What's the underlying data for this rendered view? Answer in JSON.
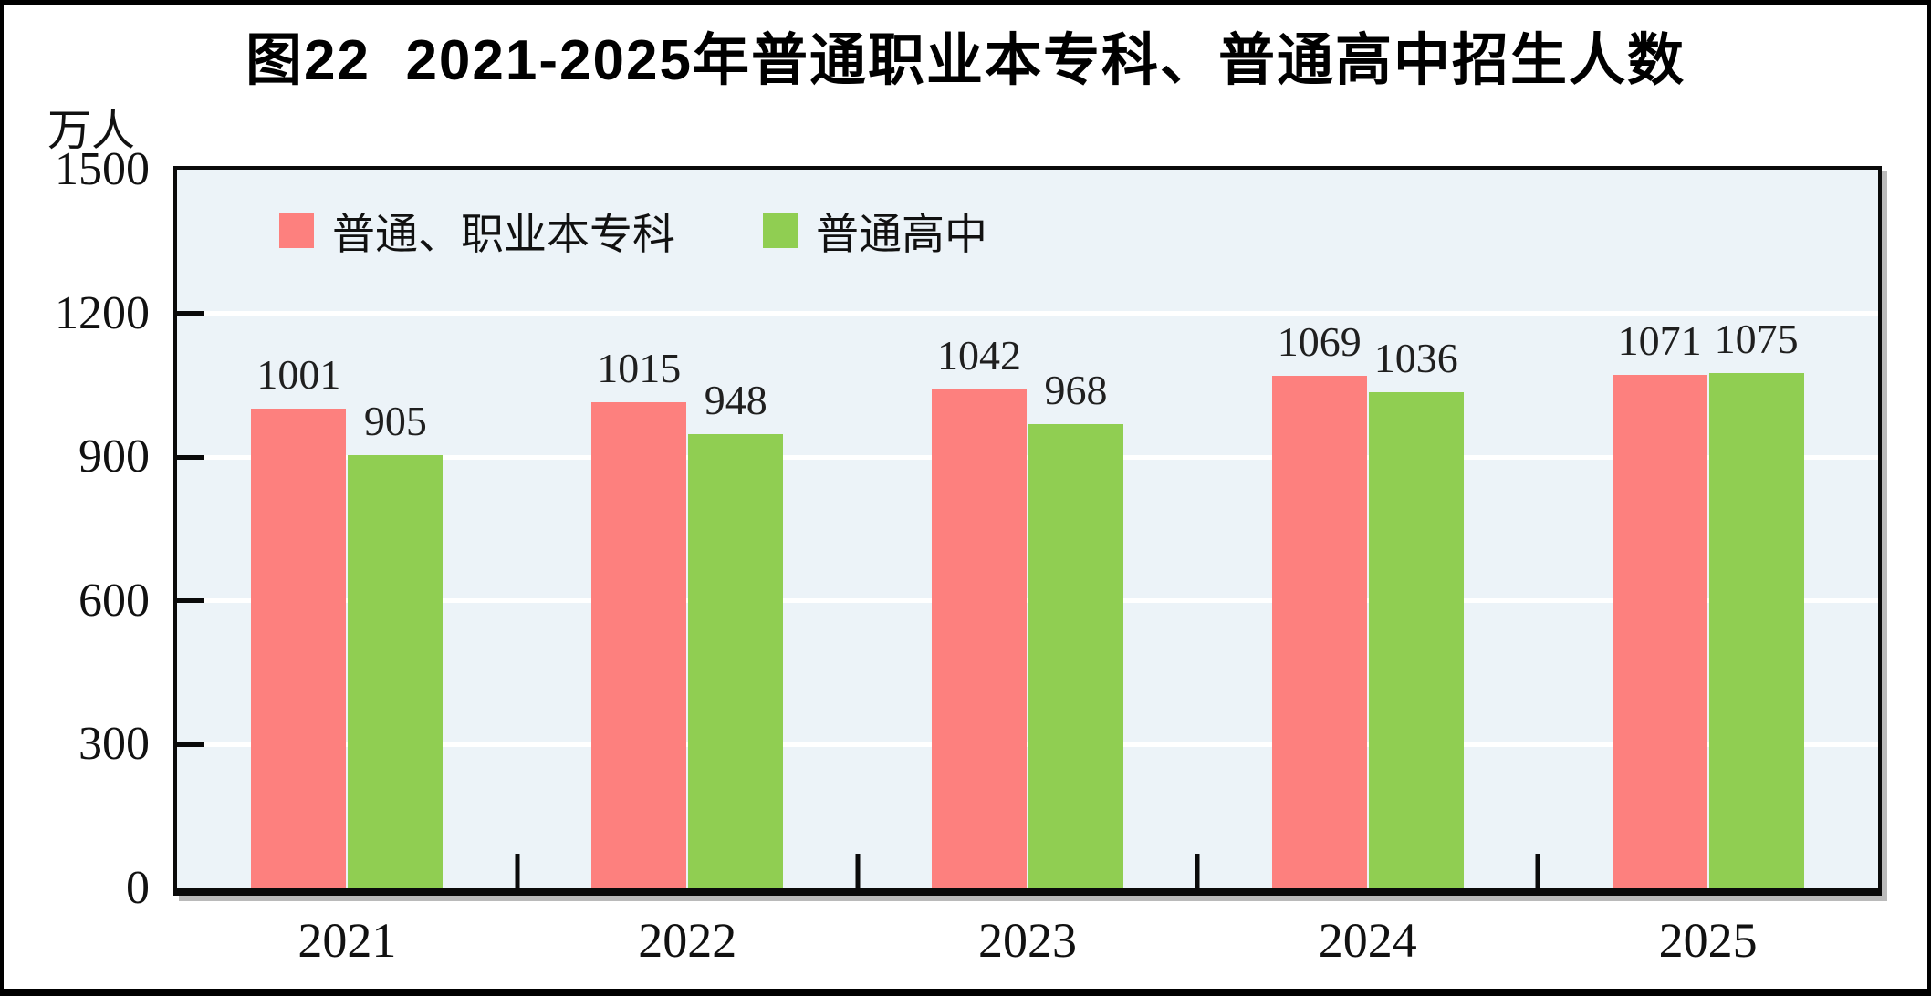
{
  "chart_data": {
    "type": "bar",
    "title": "图22  2021-2025年普通职业本专科、普通高中招生人数",
    "unit_label": "万人",
    "categories": [
      "2021",
      "2022",
      "2023",
      "2024",
      "2025"
    ],
    "series": [
      {
        "name": "普通、职业本专科",
        "color": "#FD807E",
        "values": [
          1001,
          1015,
          1042,
          1069,
          1071
        ]
      },
      {
        "name": "普通高中",
        "color": "#90CE52",
        "values": [
          905,
          948,
          968,
          1036,
          1075
        ]
      }
    ],
    "ylim": [
      0,
      1500
    ],
    "yticks": [
      0,
      300,
      600,
      900,
      1200,
      1500
    ],
    "grid": "horizontal white lines at 300/600/900/1200",
    "legend_position": "top-left inside plot",
    "plot_bg_color": "#ECF3F8",
    "axis_color": "#0a0a0a",
    "data_labels_shown": true
  }
}
